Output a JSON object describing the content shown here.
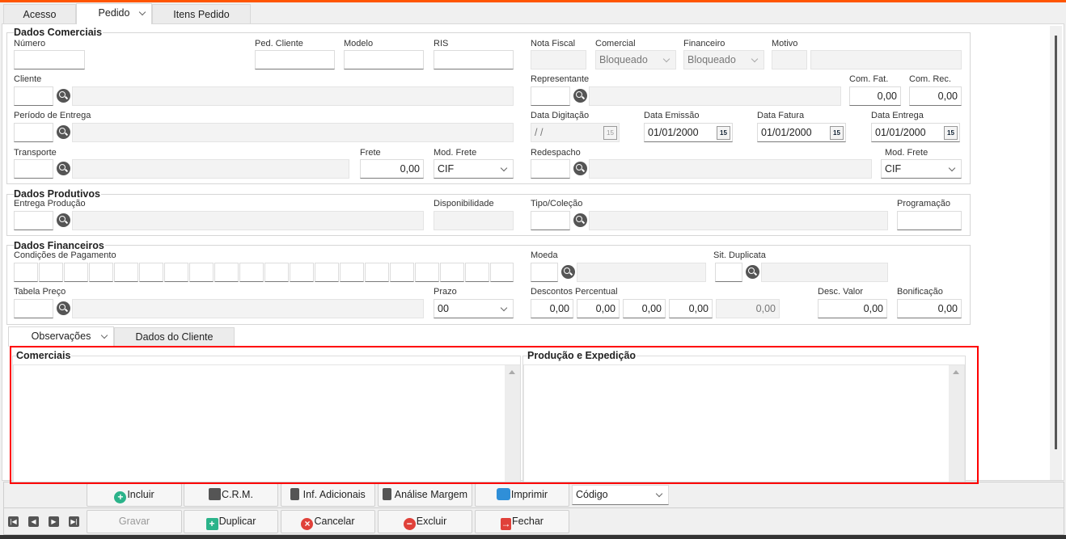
{
  "tabs": [
    "Acesso",
    "Pedido",
    "Itens Pedido"
  ],
  "comerciais": {
    "title": "Dados Comerciais",
    "numero": "Número",
    "ped_cliente": "Ped. Cliente",
    "modelo": "Modelo",
    "ris": "RIS",
    "nota_fiscal": "Nota Fiscal",
    "comercial": "Comercial",
    "comercial_value": "Bloqueado",
    "financeiro": "Financeiro",
    "financeiro_value": "Bloqueado",
    "motivo": "Motivo",
    "cliente": "Cliente",
    "representante": "Representante",
    "com_fat": "Com. Fat.",
    "com_fat_value": "0,00",
    "com_rec": "Com. Rec.",
    "com_rec_value": "0,00",
    "periodo": "Período de Entrega",
    "data_digitacao": "Data Digitação",
    "data_digitacao_value": " /  /",
    "data_emissao": "Data Emissão",
    "data_emissao_value": "01/01/2000",
    "data_fatura": "Data Fatura",
    "data_fatura_value": "01/01/2000",
    "data_entrega": "Data Entrega",
    "data_entrega_value": "01/01/2000",
    "calendar_glyph": "15",
    "transporte": "Transporte",
    "frete": "Frete",
    "frete_value": "0,00",
    "mod_frete": "Mod. Frete",
    "mod_frete_value": "CIF",
    "redespacho": "Redespacho",
    "mod_frete2": "Mod. Frete",
    "mod_frete2_value": "CIF"
  },
  "produtivos": {
    "title": "Dados Produtivos",
    "entrega_producao": "Entrega Produção",
    "disponibilidade": "Disponibilidade",
    "tipo_colecao": "Tipo/Coleção",
    "programacao": "Programação"
  },
  "financeiros": {
    "title": "Dados Financeiros",
    "condicoes": "Condições de Pagamento",
    "moeda": "Moeda",
    "sit_duplicata": "Sit. Duplicata",
    "tabela_preco": "Tabela Preço",
    "prazo": "Prazo",
    "prazo_value": "00",
    "descontos": "Descontos Percentual",
    "descontos_values": [
      "0,00",
      "0,00",
      "0,00",
      "0,00",
      "0,00"
    ],
    "desc_valor": "Desc. Valor",
    "desc_valor_value": "0,00",
    "bonificacao": "Bonificação",
    "bonificacao_value": "0,00"
  },
  "subtabs": [
    "Observações",
    "Dados do Cliente"
  ],
  "obs": {
    "comerciais": "Comerciais",
    "producao": "Produção e Expedição"
  },
  "toolbar": {
    "incluir": "Incluir",
    "crm": "C.R.M.",
    "inf": "Inf. Adicionais",
    "analise": "Análise Margem",
    "imprimir": "Imprimir",
    "ordem": "Código",
    "gravar": "Gravar",
    "duplicar": "Duplicar",
    "cancelar": "Cancelar",
    "excluir": "Excluir",
    "fechar": "Fechar"
  },
  "colors": {
    "accent": "#ff5500",
    "highlight": "#ff0000"
  }
}
